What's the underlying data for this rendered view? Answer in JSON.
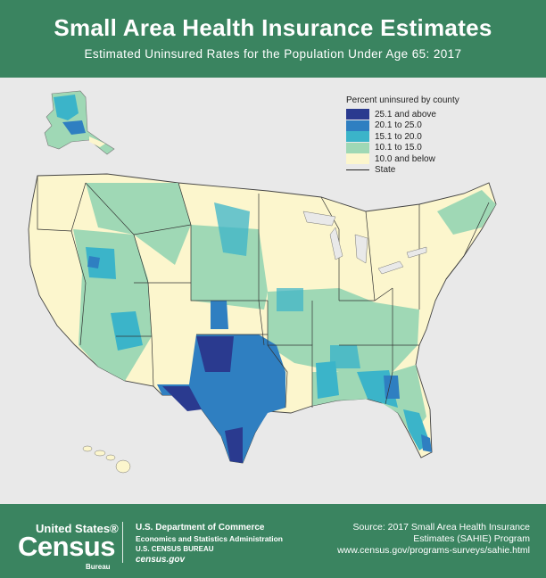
{
  "header": {
    "title": "Small Area Health Insurance Estimates",
    "subtitle": "Estimated Uninsured Rates for the Population Under Age 65: 2017"
  },
  "legend": {
    "title": "Percent uninsured by county",
    "items": [
      {
        "label": "25.1 and above",
        "color": "#2a3a8f"
      },
      {
        "label": "20.1 to 25.0",
        "color": "#2f7fc1"
      },
      {
        "label": "15.1 to 20.0",
        "color": "#3bb4c9"
      },
      {
        "label": "10.1 to 15.0",
        "color": "#9fd8b5"
      },
      {
        "label": "10.0 and below",
        "color": "#fcf6cd"
      }
    ],
    "state_label": "State"
  },
  "colors": {
    "header_bg": "#3a8460",
    "background": "#e9e9e9",
    "map_light": "#fcf6cd",
    "map_light_green": "#9fd8b5",
    "map_teal": "#3bb4c9",
    "map_blue": "#2f7fc1",
    "map_dark": "#2a3a8f"
  },
  "footer": {
    "logo_top": "United States®",
    "logo_main": "Census",
    "logo_sub": "Bureau",
    "agency_line1": "U.S. Department of Commerce",
    "agency_line2": "Economics and Statistics Administration",
    "agency_line3": "U.S. CENSUS BUREAU",
    "agency_line4": "census.gov",
    "source_line1": "Source: 2017 Small Area Health Insurance",
    "source_line2": "Estimates (SAHIE) Program",
    "source_line3": "www.census.gov/programs-surveys/sahie.html"
  }
}
